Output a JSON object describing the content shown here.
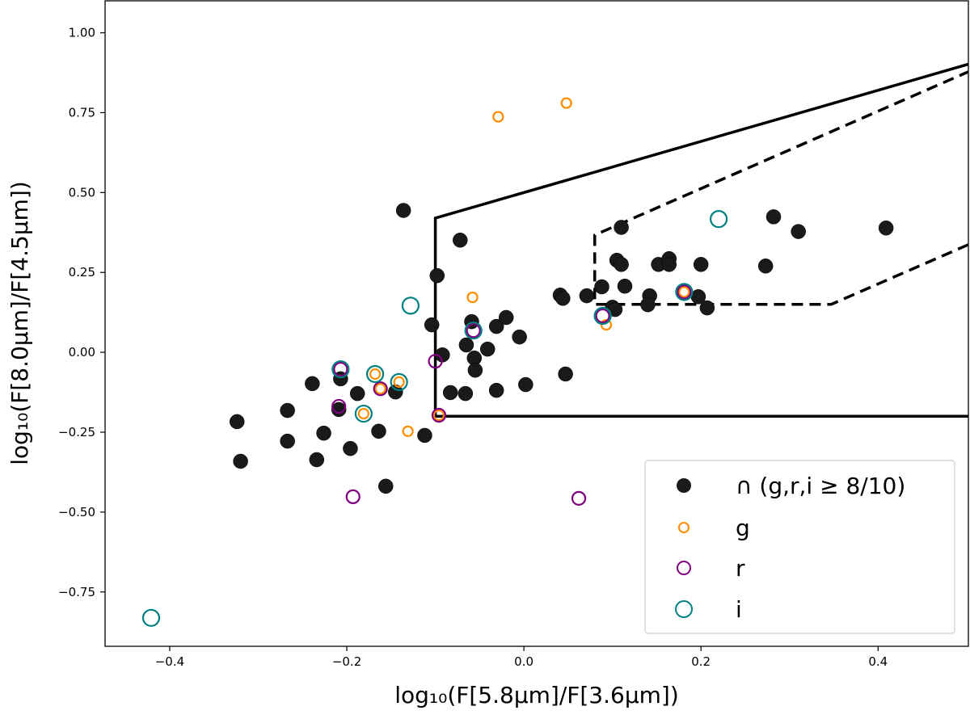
{
  "chart_data": {
    "type": "scatter",
    "title": "",
    "xlabel": "log₁₀(F[5.8μm]/F[3.6μm])",
    "ylabel": "log₁₀(F[8.0μm]/F[4.5μm])",
    "xlim": [
      -0.473,
      0.502
    ],
    "ylim": [
      -0.92,
      1.1
    ],
    "grid": false,
    "legend_position": "bottom-right",
    "xticks": [
      {
        "v": -0.4,
        "label": "−0.4"
      },
      {
        "v": -0.2,
        "label": "−0.2"
      },
      {
        "v": 0.0,
        "label": "0.0"
      },
      {
        "v": 0.2,
        "label": "0.2"
      },
      {
        "v": 0.4,
        "label": "0.4"
      }
    ],
    "yticks": [
      {
        "v": 1.0,
        "label": "1.00"
      },
      {
        "v": 0.75,
        "label": "0.75"
      },
      {
        "v": 0.5,
        "label": "0.50"
      },
      {
        "v": 0.25,
        "label": "0.25"
      },
      {
        "v": 0.0,
        "label": "0.00"
      },
      {
        "v": -0.25,
        "label": "−0.25"
      },
      {
        "v": -0.5,
        "label": "−0.50"
      },
      {
        "v": -0.75,
        "label": "−0.75"
      }
    ],
    "series": [
      {
        "name": "∩ (g,r,i ≥ 8/10)",
        "marker": "filled-circle",
        "color": "#1a1a1a",
        "points": [
          [
            -0.324,
            -0.217
          ],
          [
            -0.32,
            -0.341
          ],
          [
            -0.267,
            -0.182
          ],
          [
            -0.267,
            -0.278
          ],
          [
            -0.239,
            -0.098
          ],
          [
            -0.207,
            -0.083
          ],
          [
            -0.226,
            -0.253
          ],
          [
            -0.234,
            -0.336
          ],
          [
            -0.188,
            -0.129
          ],
          [
            -0.209,
            -0.179
          ],
          [
            -0.196,
            -0.301
          ],
          [
            -0.164,
            -0.247
          ],
          [
            -0.145,
            -0.124
          ],
          [
            -0.156,
            -0.419
          ],
          [
            -0.112,
            -0.26
          ],
          [
            -0.092,
            -0.008
          ],
          [
            -0.136,
            0.444
          ],
          [
            -0.072,
            0.351
          ],
          [
            -0.098,
            0.24
          ],
          [
            -0.104,
            0.086
          ],
          [
            -0.059,
            0.096
          ],
          [
            -0.065,
            0.023
          ],
          [
            -0.056,
            -0.018
          ],
          [
            -0.055,
            -0.056
          ],
          [
            -0.041,
            0.01
          ],
          [
            -0.031,
            0.081
          ],
          [
            -0.02,
            0.109
          ],
          [
            -0.005,
            0.048
          ],
          [
            -0.083,
            -0.126
          ],
          [
            -0.066,
            -0.129
          ],
          [
            -0.031,
            -0.119
          ],
          [
            0.002,
            -0.101
          ],
          [
            0.047,
            -0.068
          ],
          [
            0.041,
            0.179
          ],
          [
            0.044,
            0.169
          ],
          [
            0.071,
            0.177
          ],
          [
            0.088,
            0.205
          ],
          [
            0.1,
            0.141
          ],
          [
            0.103,
            0.134
          ],
          [
            0.11,
            0.391
          ],
          [
            0.105,
            0.288
          ],
          [
            0.11,
            0.275
          ],
          [
            0.152,
            0.275
          ],
          [
            0.164,
            0.293
          ],
          [
            0.164,
            0.275
          ],
          [
            0.2,
            0.275
          ],
          [
            0.273,
            0.27
          ],
          [
            0.282,
            0.424
          ],
          [
            0.31,
            0.378
          ],
          [
            0.409,
            0.389
          ],
          [
            0.114,
            0.207
          ],
          [
            0.142,
            0.177
          ],
          [
            0.14,
            0.149
          ],
          [
            0.197,
            0.174
          ],
          [
            0.207,
            0.139
          ]
        ]
      },
      {
        "name": "g",
        "marker": "open-circle",
        "color": "#ff8c00",
        "points": [
          [
            -0.029,
            0.737
          ],
          [
            0.048,
            0.78
          ],
          [
            -0.058,
            0.172
          ],
          [
            -0.131,
            -0.247
          ],
          [
            -0.168,
            -0.068
          ],
          [
            -0.141,
            -0.093
          ],
          [
            -0.162,
            -0.114
          ],
          [
            -0.181,
            -0.192
          ],
          [
            -0.096,
            -0.197
          ],
          [
            0.093,
            0.086
          ],
          [
            0.181,
            0.189
          ]
        ]
      },
      {
        "name": "r",
        "marker": "open-circle",
        "color": "#800080",
        "points": [
          [
            -0.193,
            -0.452
          ],
          [
            0.062,
            -0.457
          ],
          [
            -0.207,
            -0.053
          ],
          [
            -0.162,
            -0.114
          ],
          [
            -0.209,
            -0.169
          ],
          [
            -0.1,
            -0.028
          ],
          [
            -0.096,
            -0.197
          ],
          [
            -0.057,
            0.068
          ],
          [
            0.089,
            0.114
          ],
          [
            0.181,
            0.189
          ]
        ]
      },
      {
        "name": "i",
        "marker": "open-circle",
        "color": "#008080",
        "points": [
          [
            -0.421,
            -0.831
          ],
          [
            -0.128,
            0.146
          ],
          [
            0.22,
            0.417
          ],
          [
            -0.207,
            -0.053
          ],
          [
            -0.168,
            -0.068
          ],
          [
            -0.141,
            -0.093
          ],
          [
            -0.181,
            -0.192
          ],
          [
            -0.057,
            0.068
          ],
          [
            0.089,
            0.114
          ],
          [
            0.181,
            0.189
          ]
        ]
      }
    ],
    "regions": [
      {
        "style": "solid",
        "points": [
          [
            0.502,
            -0.2
          ],
          [
            -0.1,
            -0.2
          ],
          [
            -0.1,
            0.42
          ],
          [
            0.502,
            0.9016
          ]
        ]
      },
      {
        "style": "dashed",
        "points": [
          [
            0.502,
            0.337
          ],
          [
            0.347,
            0.15
          ],
          [
            0.08,
            0.15
          ],
          [
            0.08,
            0.367
          ],
          [
            0.502,
            0.878
          ]
        ]
      }
    ]
  }
}
